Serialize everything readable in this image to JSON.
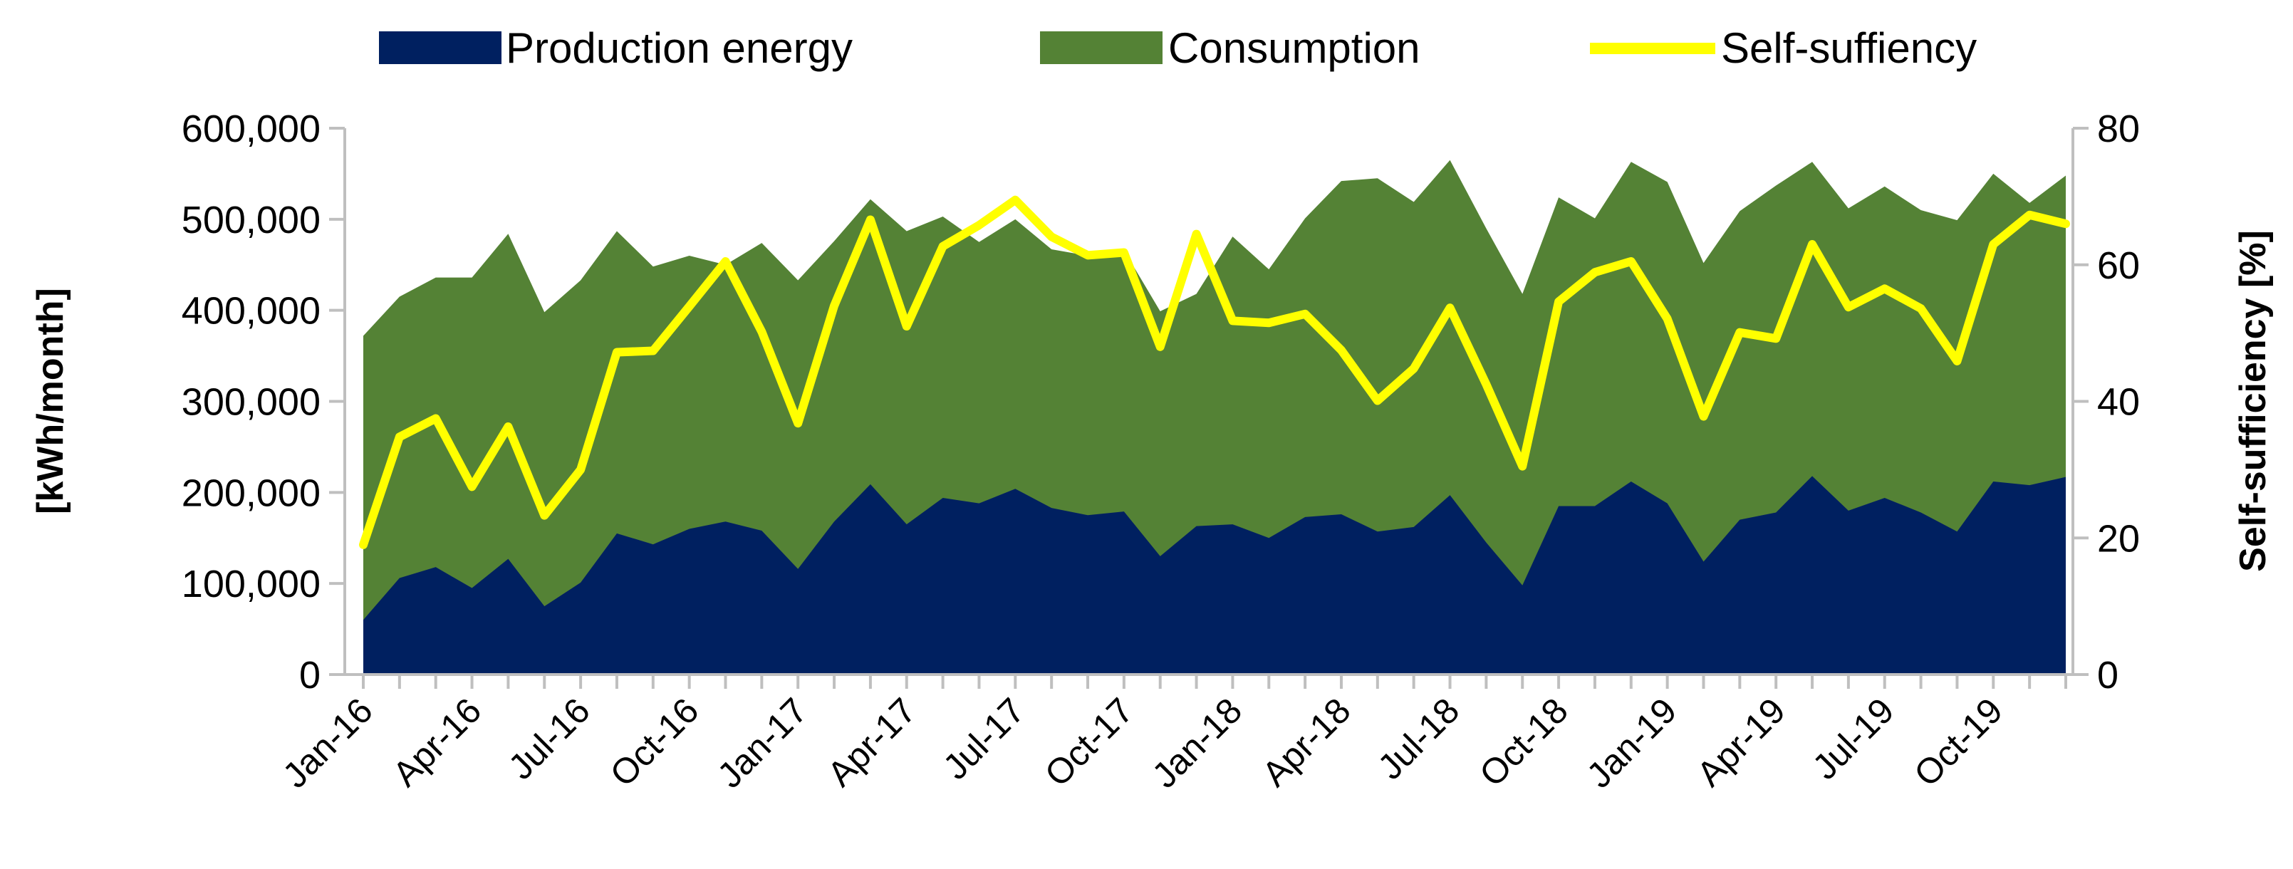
{
  "chart_data": {
    "type": "area",
    "title": "",
    "xlabel": "",
    "ylabel": "[kWh/month]",
    "y2label": "Self-sufficiency [%]",
    "ylim": [
      0,
      600000
    ],
    "y2lim": [
      0,
      80
    ],
    "ytick_labels": [
      "0",
      "100,000",
      "200,000",
      "300,000",
      "400,000",
      "500,000",
      "600,000"
    ],
    "y2tick_labels": [
      "0",
      "20",
      "40",
      "60",
      "80"
    ],
    "xtick_labels": [
      "Jan-16",
      "Apr-16",
      "Jul-16",
      "Oct-16",
      "Jan-17",
      "Apr-17",
      "Jul-17",
      "Oct-17",
      "Jan-18",
      "Apr-18",
      "Jul-18",
      "Oct-18",
      "Jan-19",
      "Apr-19",
      "Jul-19",
      "Oct-19"
    ],
    "months": [
      "Jan-16",
      "Feb-16",
      "Mar-16",
      "Apr-16",
      "May-16",
      "Jun-16",
      "Jul-16",
      "Aug-16",
      "Sep-16",
      "Oct-16",
      "Nov-16",
      "Dec-16",
      "Jan-17",
      "Feb-17",
      "Mar-17",
      "Apr-17",
      "May-17",
      "Jun-17",
      "Jul-17",
      "Aug-17",
      "Sep-17",
      "Oct-17",
      "Nov-17",
      "Dec-17",
      "Jan-18",
      "Feb-18",
      "Mar-18",
      "Apr-18",
      "May-18",
      "Jun-18",
      "Jul-18",
      "Aug-18",
      "Sep-18",
      "Oct-18",
      "Nov-18",
      "Dec-18",
      "Jan-19",
      "Feb-19",
      "Mar-19",
      "Apr-19",
      "May-19",
      "Jun-19",
      "Jul-19",
      "Aug-19",
      "Sep-19",
      "Oct-19",
      "Nov-19",
      "Dec-19"
    ],
    "series": [
      {
        "name": "Consumption",
        "axis": "left",
        "render": "area",
        "color": "#548235",
        "values": [
          372000,
          415000,
          436000,
          436000,
          484000,
          398000,
          433000,
          487000,
          448000,
          460000,
          450000,
          474000,
          433000,
          476000,
          522000,
          487000,
          503000,
          475000,
          500000,
          467000,
          460000,
          466000,
          399000,
          418000,
          481000,
          445000,
          501000,
          542000,
          545000,
          519000,
          565000,
          490000,
          418000,
          524000,
          501000,
          563000,
          541000,
          452000,
          509000,
          537000,
          563000,
          512000,
          536000,
          510000,
          499000,
          550000,
          518000,
          548000
        ]
      },
      {
        "name": "Production energy",
        "axis": "left",
        "render": "area",
        "color": "#002060",
        "values": [
          60000,
          106000,
          118000,
          95000,
          127000,
          75000,
          101000,
          155000,
          143000,
          160000,
          168000,
          158000,
          116000,
          168000,
          209000,
          165000,
          194000,
          188000,
          204000,
          183000,
          175000,
          179000,
          130000,
          163000,
          165000,
          150000,
          173000,
          176000,
          157000,
          162000,
          197000,
          145000,
          98000,
          185000,
          185000,
          212000,
          188000,
          124000,
          170000,
          178000,
          218000,
          180000,
          194000,
          178000,
          157000,
          212000,
          208000,
          217000
        ]
      },
      {
        "name": "Self-suffiency",
        "axis": "right",
        "render": "line",
        "color": "#FFFF00",
        "values": [
          19,
          34.8,
          37.5,
          27.5,
          36.3,
          23.3,
          30,
          47.2,
          47.4,
          53.9,
          60.5,
          50.2,
          36.8,
          54,
          66.6,
          51,
          62.7,
          65.8,
          69.5,
          64.1,
          61.4,
          61.8,
          48,
          64.5,
          51.8,
          51.5,
          52.8,
          47.5,
          40.1,
          44.8,
          53.7,
          42.5,
          30.5,
          54.6,
          58.9,
          60.5,
          52.1,
          37.8,
          50.1,
          49.2,
          63,
          53.8,
          56.5,
          53.6,
          45.9,
          63,
          67.3,
          66
        ]
      }
    ],
    "legend": {
      "position": "top",
      "entries": [
        "Production energy",
        "Consumption",
        "Self-suffiency"
      ]
    }
  }
}
